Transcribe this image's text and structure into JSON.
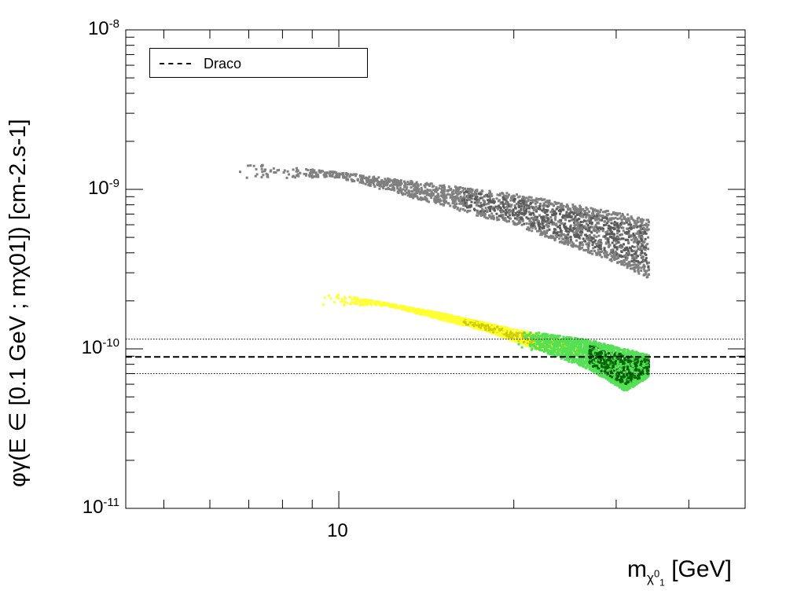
{
  "chart_data": {
    "type": "scatter",
    "x_axis": {
      "label_main": "m",
      "label_sub": "χ",
      "label_sub_sup": "0",
      "label_sub_sub": "1",
      "label_unit": "[GeV]",
      "scale": "log",
      "range": [
        4.3,
        50
      ],
      "major_ticks": [
        10
      ],
      "tick_labels": [
        "10"
      ]
    },
    "y_axis": {
      "label": "φγ(E ∈ [0.1 GeV ; mχ01]) [cm-2.s-1]",
      "scale": "log",
      "range": [
        1e-11,
        1e-08
      ],
      "major_ticks": [
        1e-11,
        1e-10,
        1e-09,
        1e-08
      ],
      "tick_label_base": "10",
      "tick_label_exponents": [
        "-11",
        "-10",
        "-9",
        "-8"
      ]
    },
    "legend": {
      "position": "top-left",
      "entries": [
        {
          "label": "Draco",
          "style": "dashed",
          "color": "#000000"
        }
      ]
    },
    "horizontal_lines": [
      {
        "name": "Draco",
        "y": 8.9e-11,
        "style": "dashed"
      },
      {
        "y": 1.15e-10,
        "style": "dotted"
      },
      {
        "y": 7e-11,
        "style": "dotted"
      }
    ],
    "series": [
      {
        "color": "#808080",
        "highlight_color": "#5a5a5a",
        "band": {
          "x_range": [
            6.5,
            34
          ],
          "upper": [
            [
              7.5,
              1.45e-09
            ],
            [
              10,
              1.3e-09
            ],
            [
              20,
              9.5e-10
            ],
            [
              34,
              6.7e-10
            ]
          ],
          "lower": [
            [
              10,
              1.2e-09
            ],
            [
              20,
              6e-10
            ],
            [
              30,
              3.5e-10
            ],
            [
              34,
              2.8e-10
            ]
          ]
        }
      },
      {
        "color": "#ffff33",
        "highlight_color": "#cccc00",
        "band": {
          "x_range": [
            9.2,
            26
          ],
          "upper": [
            [
              9.5,
              2.3e-10
            ],
            [
              15,
              1.7e-10
            ],
            [
              20,
              1.35e-10
            ],
            [
              26,
              1.1e-10
            ]
          ],
          "lower": [
            [
              12,
              1.9e-10
            ],
            [
              18,
              1.3e-10
            ],
            [
              22,
              1e-10
            ],
            [
              26,
              9.5e-11
            ]
          ]
        }
      },
      {
        "color": "#55e055",
        "highlight_color": "#006400",
        "band": {
          "x_range": [
            20,
            34
          ],
          "upper": [
            [
              20,
              1.35e-10
            ],
            [
              27,
              1.15e-10
            ],
            [
              34,
              9.3e-11
            ]
          ],
          "lower": [
            [
              22,
              1e-10
            ],
            [
              27,
              7.5e-11
            ],
            [
              31,
              5.5e-11
            ],
            [
              34,
              6.8e-11
            ]
          ]
        }
      }
    ]
  }
}
